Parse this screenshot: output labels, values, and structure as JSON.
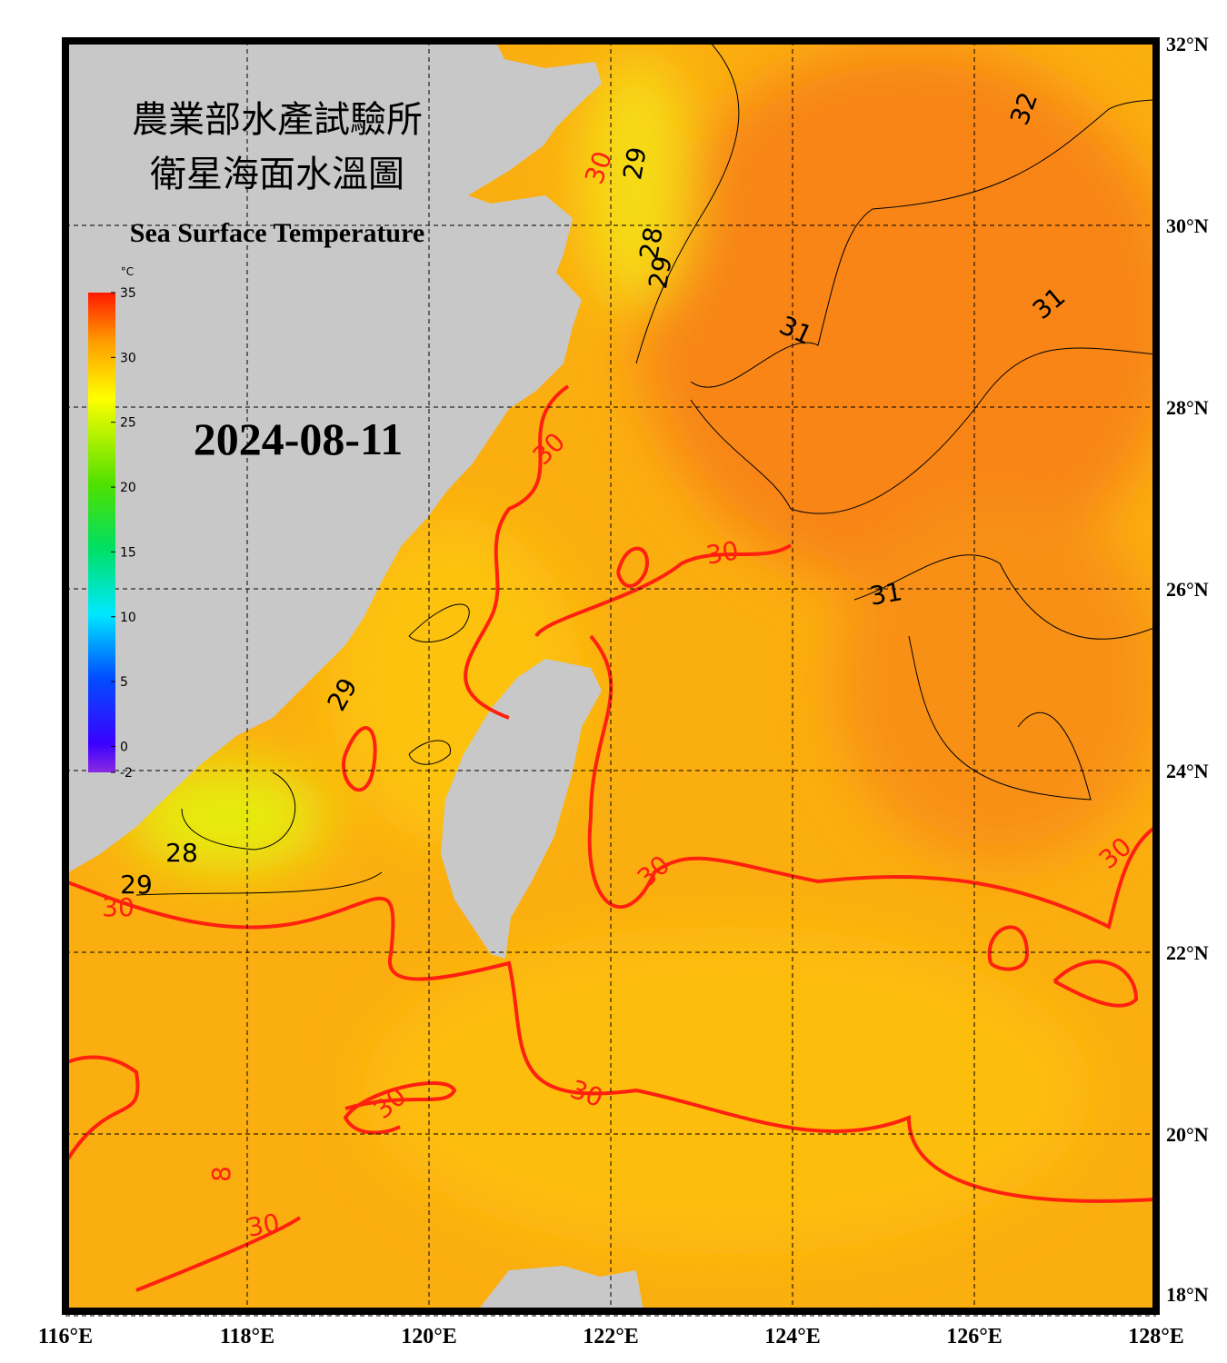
{
  "map": {
    "title": "農業部水產試驗所",
    "subtitle": "衛星海面水溫圖",
    "title_en": "Sea Surface Temperature",
    "date": "2024-08-11",
    "xlim": [
      116,
      128
    ],
    "ylim": [
      18,
      32
    ],
    "xticks": [
      {
        "value": 116,
        "label": "116°E"
      },
      {
        "value": 118,
        "label": "118°E"
      },
      {
        "value": 120,
        "label": "120°E"
      },
      {
        "value": 122,
        "label": "122°E"
      },
      {
        "value": 124,
        "label": "124°E"
      },
      {
        "value": 126,
        "label": "126°E"
      },
      {
        "value": 128,
        "label": "128°E"
      }
    ],
    "yticks": [
      {
        "value": 32,
        "label": "32°N"
      },
      {
        "value": 30,
        "label": "30°N"
      },
      {
        "value": 28,
        "label": "28°N"
      },
      {
        "value": 26,
        "label": "26°N"
      },
      {
        "value": 24,
        "label": "24°N"
      },
      {
        "value": 22,
        "label": "22°N"
      },
      {
        "value": 20,
        "label": "20°N"
      },
      {
        "value": 18,
        "label": "18°N"
      }
    ],
    "colorbar": {
      "unit": "°C",
      "range": [
        -2,
        35
      ],
      "ticks": [
        35,
        30,
        25,
        20,
        15,
        10,
        5,
        0,
        -2
      ]
    },
    "contour_labels": [
      32,
      31,
      31,
      31,
      30,
      29,
      28,
      29,
      30,
      30,
      29,
      28,
      29,
      30,
      30,
      30,
      30,
      30,
      30,
      8
    ]
  }
}
